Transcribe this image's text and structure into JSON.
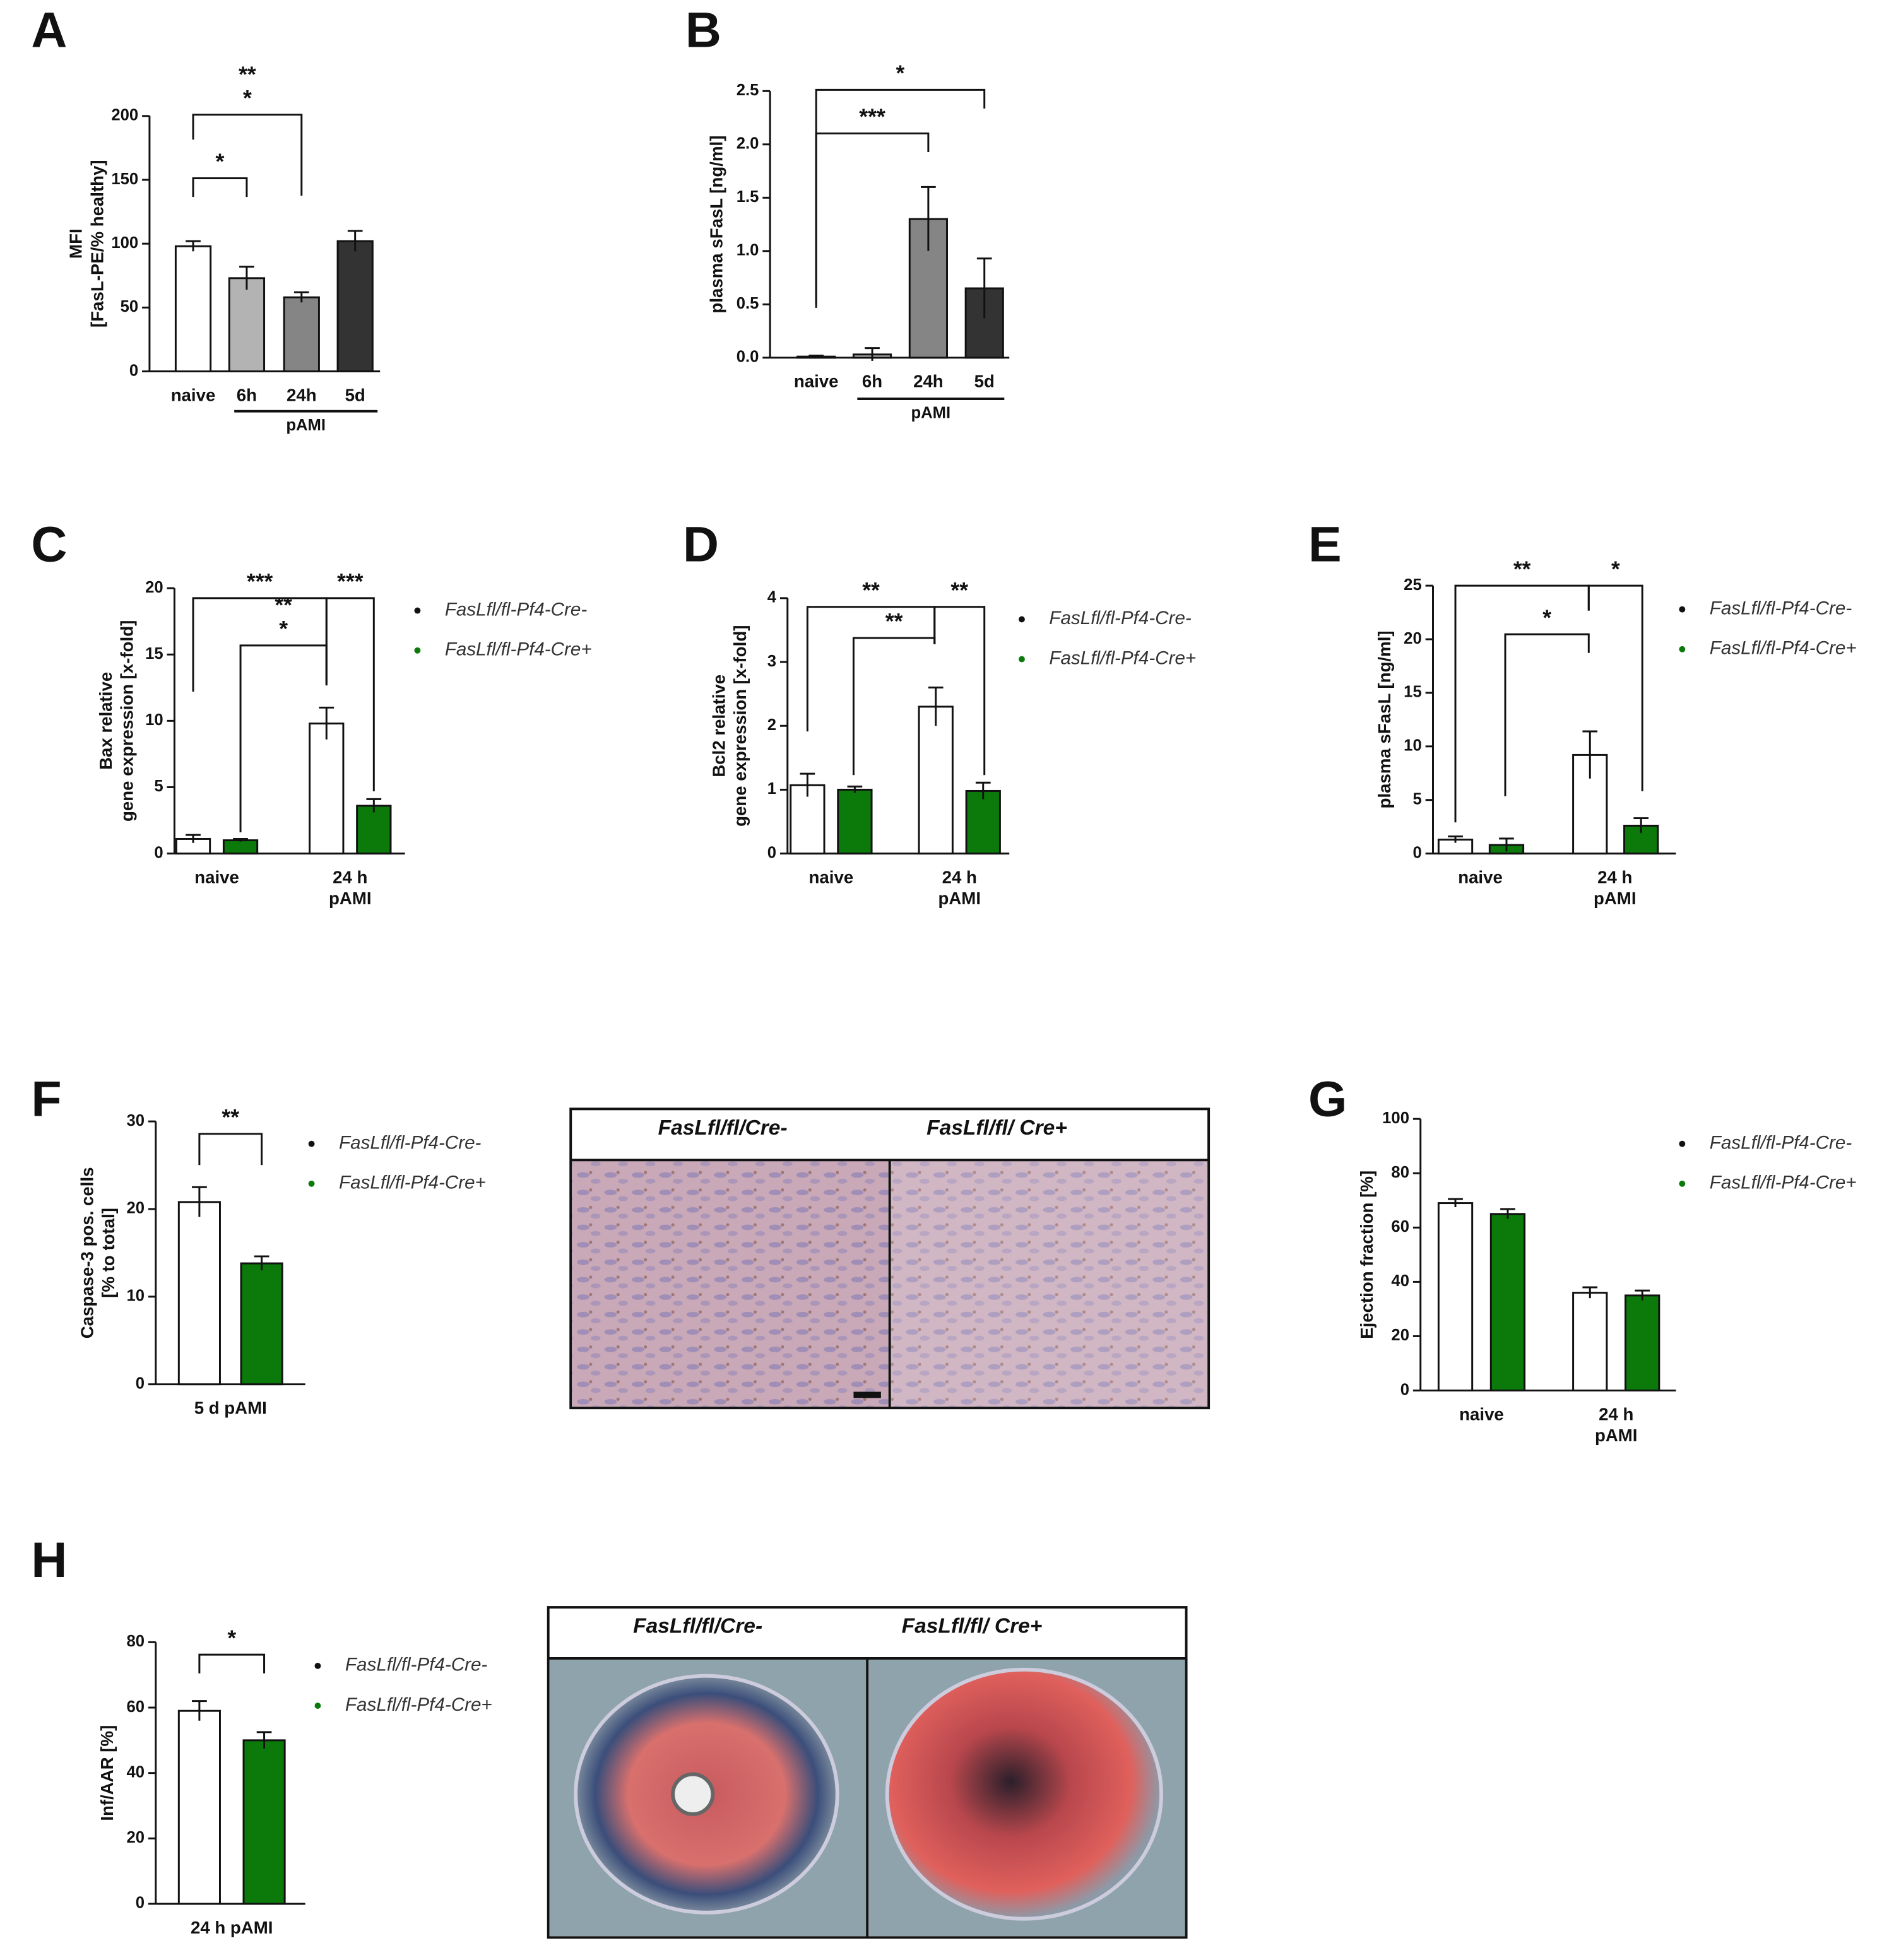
{
  "chart_data": [
    {
      "type": "bar",
      "panel": "A",
      "ylabel": [
        "MFI",
        "[FasL-PE/% healthy]"
      ],
      "categories": [
        "naive",
        "6h",
        "24h",
        "5d"
      ],
      "group_label": "pAMI",
      "values": [
        98,
        73,
        58,
        102
      ],
      "errors": [
        4,
        9,
        4,
        8
      ],
      "colors": [
        "#ffffff",
        "#b3b3b3",
        "#858585",
        "#333333"
      ],
      "ylim": [
        0,
        200
      ],
      "yticks": [
        0,
        50,
        100,
        150,
        200
      ],
      "annotations": [
        [
          "*"
        ],
        [
          "**",
          "*"
        ]
      ]
    },
    {
      "type": "bar",
      "panel": "B",
      "ylabel": [
        "plasma sFasL [ng/ml]"
      ],
      "categories": [
        "naive",
        "6h",
        "24h",
        "5d"
      ],
      "group_label": "pAMI",
      "values": [
        0.01,
        0.03,
        1.3,
        0.65
      ],
      "errors": [
        0.01,
        0.06,
        0.3,
        0.28
      ],
      "colors": [
        "#ffffff",
        "#b3b3b3",
        "#858585",
        "#333333"
      ],
      "ylim": [
        0,
        2.5
      ],
      "yticks": [
        {
          "value": 0,
          "label": "0.0"
        },
        0.5,
        {
          "value": 1,
          "label": "1.0"
        },
        1.5,
        {
          "value": 2,
          "label": "2.0"
        },
        2.5
      ],
      "annotations": [
        [
          "***"
        ],
        [
          "*"
        ]
      ]
    },
    {
      "type": "grouped_bar",
      "panel": "C",
      "ylabel": [
        "Bax relative",
        "gene expression [x-fold]"
      ],
      "categories": [
        [
          "naive"
        ],
        [
          "24 h",
          "pAMI"
        ]
      ],
      "series": [
        {
          "name": "FasLfl/fl-Pf4-Cre-",
          "color": "#ffffff",
          "values": [
            1.1,
            9.8
          ],
          "errors": [
            0.3,
            1.2
          ]
        },
        {
          "name": "FasLfl/fl-Pf4-Cre+",
          "color": "#0b7a0b",
          "values": [
            1.0,
            3.6
          ],
          "errors": [
            0.1,
            0.5
          ]
        }
      ],
      "ylim": [
        0,
        20
      ],
      "yticks": [
        0,
        5,
        10,
        15,
        20
      ],
      "annotations": [
        [
          "***"
        ],
        [
          "***"
        ],
        [
          "**",
          "*"
        ]
      ]
    },
    {
      "type": "grouped_bar",
      "panel": "D",
      "ylabel": [
        "Bcl2 relative",
        "gene expression [x-fold]"
      ],
      "categories": [
        [
          "naive"
        ],
        [
          "24 h",
          "pAMI"
        ]
      ],
      "series": [
        {
          "name": "FasLfl/fl-Pf4-Cre-",
          "color": "#ffffff",
          "values": [
            1.07,
            2.3
          ],
          "errors": [
            0.18,
            0.3
          ]
        },
        {
          "name": "FasLfl/fl-Pf4-Cre+",
          "color": "#0b7a0b",
          "values": [
            1.0,
            0.98
          ],
          "errors": [
            0.05,
            0.13
          ]
        }
      ],
      "ylim": [
        0,
        4
      ],
      "yticks": [
        0,
        1,
        2,
        3,
        4
      ],
      "annotations": [
        [
          "**"
        ],
        [
          "**"
        ],
        [
          "**"
        ]
      ]
    },
    {
      "type": "grouped_bar",
      "panel": "E",
      "ylabel": [
        "plasma sFasL [ng/ml]"
      ],
      "categories": [
        [
          "naive"
        ],
        [
          "24 h",
          "pAMI"
        ]
      ],
      "series": [
        {
          "name": "FasLfl/fl-Pf4-Cre-",
          "color": "#ffffff",
          "values": [
            1.3,
            9.2
          ],
          "errors": [
            0.3,
            2.2
          ]
        },
        {
          "name": "FasLfl/fl-Pf4-Cre+",
          "color": "#0b7a0b",
          "values": [
            0.8,
            2.6
          ],
          "errors": [
            0.6,
            0.7
          ]
        }
      ],
      "ylim": [
        0,
        25
      ],
      "yticks": [
        0,
        5,
        10,
        15,
        20,
        25
      ],
      "annotations": [
        [
          "**"
        ],
        [
          "*"
        ],
        [
          "*"
        ]
      ]
    },
    {
      "type": "grouped_bar",
      "panel": "F",
      "ylabel": [
        "Caspase-3 pos. cells",
        "[% to total]"
      ],
      "categories": [
        [
          "5 d pAMI"
        ]
      ],
      "series": [
        {
          "name": "FasLfl/fl-Pf4-Cre-",
          "color": "#ffffff",
          "values": [
            20.8
          ],
          "errors": [
            1.7
          ]
        },
        {
          "name": "FasLfl/fl-Pf4-Cre+",
          "color": "#0b7a0b",
          "values": [
            13.8
          ],
          "errors": [
            0.8
          ]
        }
      ],
      "ylim": [
        0,
        30
      ],
      "yticks": [
        0,
        10,
        20,
        30
      ],
      "annotations": [
        [
          "**"
        ]
      ]
    },
    {
      "type": "grouped_bar",
      "panel": "G",
      "ylabel": [
        "Ejection fraction [%]"
      ],
      "categories": [
        [
          "naive"
        ],
        [
          "24 h",
          "pAMI"
        ]
      ],
      "series": [
        {
          "name": "FasLfl/fl-Pf4-Cre-",
          "color": "#ffffff",
          "values": [
            69,
            36
          ],
          "errors": [
            1.5,
            2
          ]
        },
        {
          "name": "FasLfl/fl-Pf4-Cre+",
          "color": "#0b7a0b",
          "values": [
            65,
            35
          ],
          "errors": [
            1.8,
            1.8
          ]
        }
      ],
      "ylim": [
        0,
        100
      ],
      "yticks": [
        0,
        20,
        40,
        60,
        80,
        100
      ],
      "annotations": []
    },
    {
      "type": "grouped_bar",
      "panel": "H",
      "ylabel": [
        "Inf/AAR [%]"
      ],
      "categories": [
        [
          "24 h pAMI"
        ]
      ],
      "series": [
        {
          "name": "FasLfl/fl-Pf4-Cre-",
          "color": "#ffffff",
          "values": [
            59
          ],
          "errors": [
            3
          ]
        },
        {
          "name": "FasLfl/fl-Pf4-Cre+",
          "color": "#0b7a0b",
          "values": [
            50
          ],
          "errors": [
            2.5
          ]
        }
      ],
      "ylim": [
        0,
        80
      ],
      "yticks": [
        0,
        20,
        40,
        60,
        80
      ],
      "annotations": [
        [
          "*"
        ]
      ]
    }
  ],
  "images": [
    {
      "panel": "F",
      "labels": [
        "FasLfl/fl/Cre-",
        "FasLfl/fl/ Cre+"
      ]
    },
    {
      "panel": "H",
      "labels": [
        "FasLfl/fl/Cre-",
        "FasLfl/fl/ Cre+"
      ]
    }
  ]
}
